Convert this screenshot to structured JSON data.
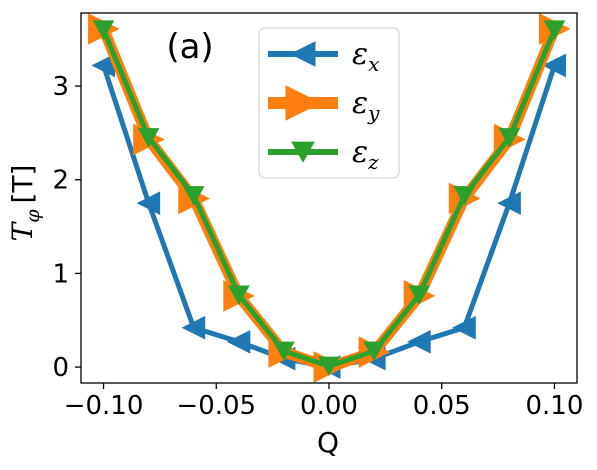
{
  "chart_data": {
    "type": "line",
    "panel_label": "(a)",
    "title": "",
    "xlabel": "Q",
    "ylabel_symbol": "T",
    "ylabel_subscript": "φ",
    "ylabel_unit": "[T]",
    "xlim": [
      -0.11,
      0.11
    ],
    "ylim": [
      -0.17,
      3.78
    ],
    "xticks": [
      -0.1,
      -0.05,
      0.0,
      0.05,
      0.1
    ],
    "xtick_labels": [
      "−0.10",
      "−0.05",
      "0.00",
      "0.05",
      "0.10"
    ],
    "yticks": [
      0,
      1,
      2,
      3
    ],
    "ytick_labels": [
      "0",
      "1",
      "2",
      "3"
    ],
    "grid": false,
    "legend_position": "top-center",
    "x": [
      -0.1,
      -0.08,
      -0.06,
      -0.04,
      -0.02,
      0.0,
      0.02,
      0.04,
      0.06,
      0.08,
      0.1
    ],
    "series": [
      {
        "name": "ε",
        "subscript": "x",
        "color": "#1f77b4",
        "marker": "triangle-left",
        "values": [
          3.22,
          1.75,
          0.42,
          0.27,
          0.09,
          0.0,
          0.09,
          0.27,
          0.42,
          1.75,
          3.22
        ]
      },
      {
        "name": "ε",
        "subscript": "y",
        "color": "#ff7f0e",
        "marker": "triangle-right",
        "values": [
          3.61,
          2.43,
          1.8,
          0.76,
          0.16,
          0.0,
          0.16,
          0.76,
          1.8,
          2.43,
          3.61
        ]
      },
      {
        "name": "ε",
        "subscript": "z",
        "color": "#2ca02c",
        "marker": "triangle-down",
        "values": [
          3.6,
          2.45,
          1.83,
          0.77,
          0.17,
          0.01,
          0.17,
          0.77,
          1.83,
          2.45,
          3.6
        ]
      }
    ]
  }
}
